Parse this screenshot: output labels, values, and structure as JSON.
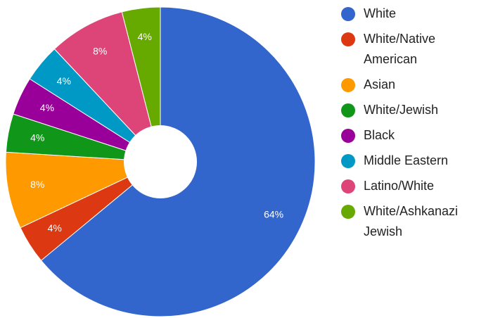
{
  "chart_data": {
    "type": "pie",
    "title": "",
    "donut": true,
    "legend_position": "right",
    "slices": [
      {
        "label": "White",
        "legend_lines": [
          "White"
        ],
        "value": 64,
        "display": "64%",
        "color": "#3366cc"
      },
      {
        "label": "White/Native American",
        "legend_lines": [
          "White/Native",
          "American"
        ],
        "value": 4,
        "display": "4%",
        "color": "#dc3912"
      },
      {
        "label": "Asian",
        "legend_lines": [
          "Asian"
        ],
        "value": 8,
        "display": "8%",
        "color": "#ff9900"
      },
      {
        "label": "White/Jewish",
        "legend_lines": [
          "White/Jewish"
        ],
        "value": 4,
        "display": "4%",
        "color": "#109618"
      },
      {
        "label": "Black",
        "legend_lines": [
          "Black"
        ],
        "value": 4,
        "display": "4%",
        "color": "#990099"
      },
      {
        "label": "Middle Eastern",
        "legend_lines": [
          "Middle Eastern"
        ],
        "value": 4,
        "display": "4%",
        "color": "#0099c6"
      },
      {
        "label": "Latino/White",
        "legend_lines": [
          "Latino/White"
        ],
        "value": 8,
        "display": "8%",
        "color": "#dd4477"
      },
      {
        "label": "White/Ashkanazi Jewish",
        "legend_lines": [
          "White/Ashkanazi",
          "Jewish"
        ],
        "value": 4,
        "display": "4%",
        "color": "#66aa00"
      }
    ]
  }
}
